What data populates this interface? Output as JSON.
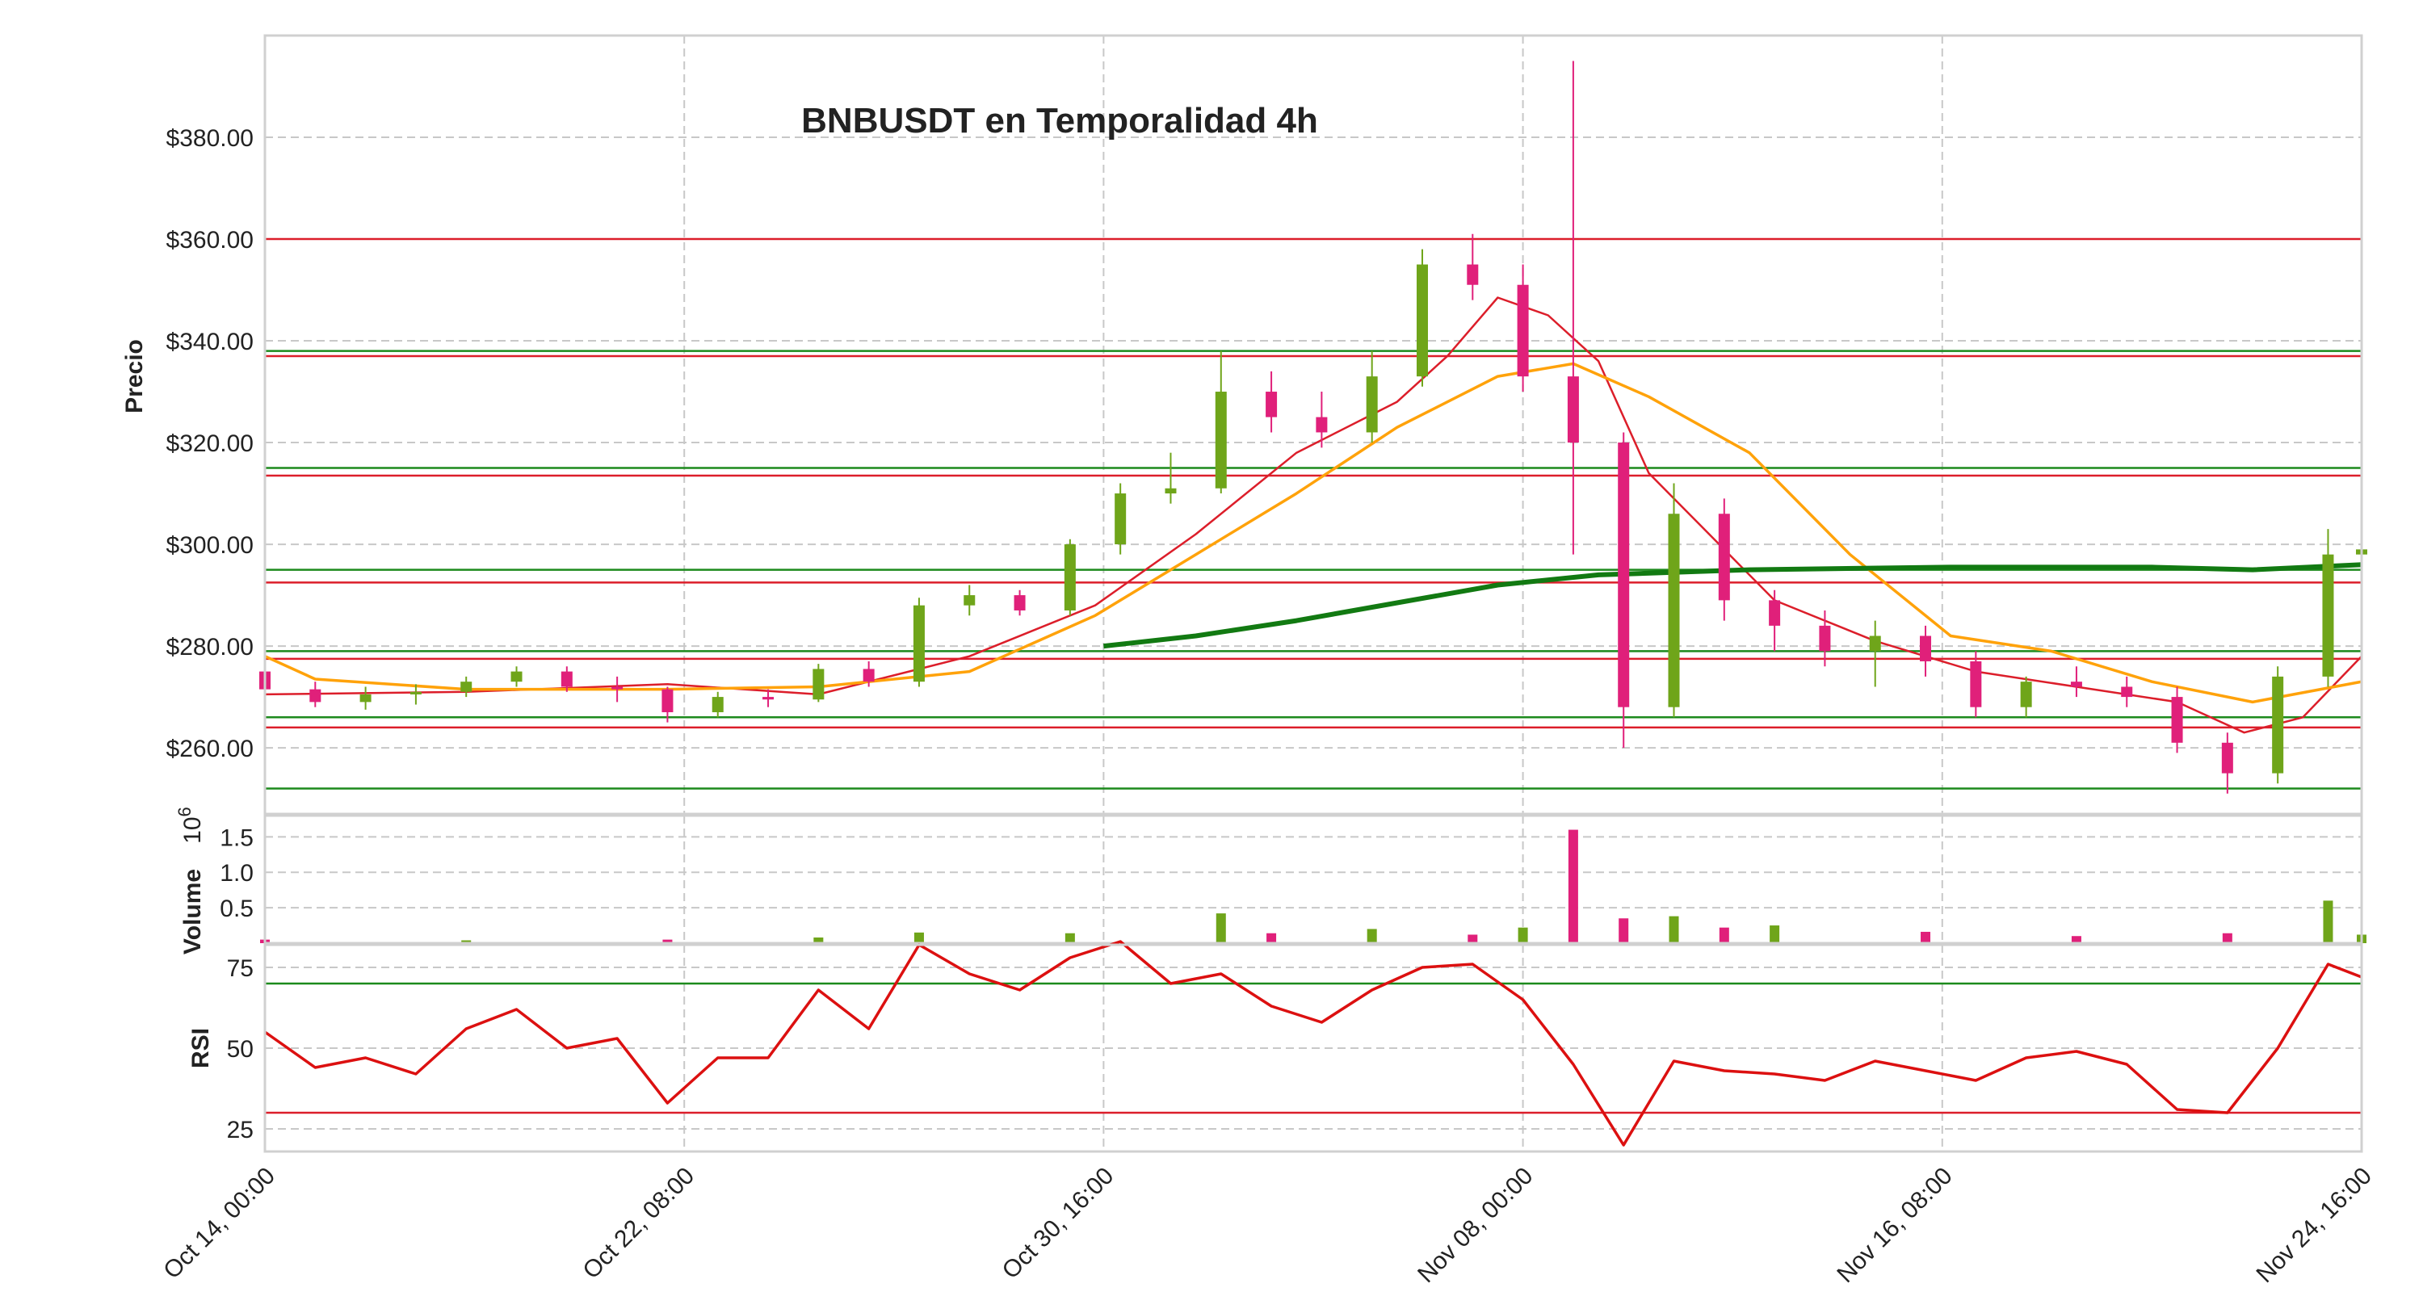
{
  "chart_data": {
    "type": "candlestick",
    "title": "BNBUSDT en Temporalidad 4h",
    "colors": {
      "up": "#6fa51a",
      "down": "#e0207a",
      "sma_short": "#dc1e2a",
      "sma_mid": "#ffa20a",
      "sma_long": "#127a12",
      "resistance": "#dc1e2a",
      "support": "#1c8a1c",
      "rsi": "#dc1010"
    },
    "x_axis": {
      "tick_labels": [
        "Oct 14, 00:00",
        "Oct 22, 08:00",
        "Oct 30, 16:00",
        "Nov 08, 00:00",
        "Nov 16, 08:00",
        "Nov 24, 16:00"
      ],
      "start": "2023-10-14T00:00",
      "end": "2023-11-24T16:00",
      "interval": "4h"
    },
    "price_panel": {
      "ylabel": "Precio",
      "ylim": [
        247,
        400
      ],
      "yticks": [
        260,
        280,
        300,
        320,
        340,
        360,
        380
      ],
      "ytick_labels": [
        "$260.00",
        "$280.00",
        "$300.00",
        "$320.00",
        "$340.00",
        "$360.00",
        "$380.00"
      ],
      "resistance_lines": [
        360,
        337,
        313.5,
        292.5,
        277.5,
        264
      ],
      "support_lines": [
        338,
        315,
        295,
        279,
        266,
        252
      ],
      "candles_key": [
        "datetime",
        "open",
        "high",
        "low",
        "close"
      ],
      "candles": [
        [
          "2023-10-14T00:00",
          275.0,
          276.0,
          270.0,
          271.5
        ],
        [
          "2023-10-15T00:00",
          271.5,
          273.0,
          268.0,
          269.0
        ],
        [
          "2023-10-16T00:00",
          269.0,
          272.0,
          267.5,
          270.5
        ],
        [
          "2023-10-17T00:00",
          270.5,
          272.5,
          268.5,
          271.0
        ],
        [
          "2023-10-18T00:00",
          271.0,
          274.0,
          270.0,
          273.0
        ],
        [
          "2023-10-19T00:00",
          273.0,
          276.0,
          272.0,
          275.0
        ],
        [
          "2023-10-20T00:00",
          275.0,
          276.0,
          271.0,
          272.0
        ],
        [
          "2023-10-21T00:00",
          272.0,
          274.0,
          269.0,
          271.5
        ],
        [
          "2023-10-22T00:00",
          271.5,
          272.0,
          265.0,
          267.0
        ],
        [
          "2023-10-23T00:00",
          267.0,
          271.0,
          266.0,
          270.0
        ],
        [
          "2023-10-24T00:00",
          270.0,
          271.5,
          268.0,
          269.5
        ],
        [
          "2023-10-25T00:00",
          269.5,
          276.5,
          269.0,
          275.5
        ],
        [
          "2023-10-26T00:00",
          275.5,
          277.0,
          272.0,
          273.0
        ],
        [
          "2023-10-27T00:00",
          273.0,
          289.5,
          272.0,
          288.0
        ],
        [
          "2023-10-28T00:00",
          288.0,
          292.0,
          286.0,
          290.0
        ],
        [
          "2023-10-29T00:00",
          290.0,
          291.0,
          286.0,
          287.0
        ],
        [
          "2023-10-30T00:00",
          287.0,
          301.0,
          286.0,
          300.0
        ],
        [
          "2023-10-31T00:00",
          300.0,
          312.0,
          298.0,
          310.0
        ],
        [
          "2023-11-01T00:00",
          310.0,
          318.0,
          308.0,
          311.0
        ],
        [
          "2023-11-02T00:00",
          311.0,
          338.0,
          310.0,
          330.0
        ],
        [
          "2023-11-03T00:00",
          330.0,
          334.0,
          322.0,
          325.0
        ],
        [
          "2023-11-04T00:00",
          325.0,
          330.0,
          319.0,
          322.0
        ],
        [
          "2023-11-05T00:00",
          322.0,
          338.0,
          320.0,
          333.0
        ],
        [
          "2023-11-06T00:00",
          333.0,
          358.0,
          331.0,
          355.0
        ],
        [
          "2023-11-07T00:00",
          355.0,
          361.0,
          348.0,
          351.0
        ],
        [
          "2023-11-08T00:00",
          351.0,
          355.0,
          330.0,
          333.0
        ],
        [
          "2023-11-09T00:00",
          333.0,
          395.0,
          298.0,
          320.0
        ],
        [
          "2023-11-10T00:00",
          320.0,
          322.0,
          260.0,
          268.0
        ],
        [
          "2023-11-11T00:00",
          268.0,
          312.0,
          266.0,
          306.0
        ],
        [
          "2023-11-12T00:00",
          306.0,
          309.0,
          285.0,
          289.0
        ],
        [
          "2023-11-13T00:00",
          289.0,
          291.0,
          279.0,
          284.0
        ],
        [
          "2023-11-14T00:00",
          284.0,
          287.0,
          276.0,
          279.0
        ],
        [
          "2023-11-15T00:00",
          279.0,
          285.0,
          272.0,
          282.0
        ],
        [
          "2023-11-16T00:00",
          282.0,
          284.0,
          274.0,
          277.0
        ],
        [
          "2023-11-17T00:00",
          277.0,
          279.0,
          266.0,
          268.0
        ],
        [
          "2023-11-18T00:00",
          268.0,
          274.0,
          266.0,
          273.0
        ],
        [
          "2023-11-19T00:00",
          273.0,
          276.0,
          270.0,
          272.0
        ],
        [
          "2023-11-20T00:00",
          272.0,
          274.0,
          268.0,
          270.0
        ],
        [
          "2023-11-21T00:00",
          270.0,
          272.0,
          259.0,
          261.0
        ],
        [
          "2023-11-22T00:00",
          261.0,
          263.0,
          251.0,
          255.0
        ],
        [
          "2023-11-23T00:00",
          255.0,
          276.0,
          253.0,
          274.0
        ],
        [
          "2023-11-24T00:00",
          274.0,
          303.0,
          272.0,
          298.0
        ],
        [
          "2023-11-24T16:00",
          298.0,
          301.0,
          295.0,
          299.0
        ]
      ],
      "moving_averages": [
        {
          "color": "#dc1e2a",
          "width": "thin",
          "points": [
            [
              "2023-10-14T00:00",
              270.5
            ],
            [
              "2023-10-18T00:00",
              271.0
            ],
            [
              "2023-10-22T00:00",
              272.5
            ],
            [
              "2023-10-25T00:00",
              270.5
            ],
            [
              "2023-10-28T00:00",
              278.0
            ],
            [
              "2023-10-30T12:00",
              288.0
            ],
            [
              "2023-11-01T12:00",
              302.0
            ],
            [
              "2023-11-03T12:00",
              318.0
            ],
            [
              "2023-11-05T12:00",
              328.0
            ],
            [
              "2023-11-06T12:00",
              337.0
            ],
            [
              "2023-11-07T12:00",
              348.5
            ],
            [
              "2023-11-08T12:00",
              345.0
            ],
            [
              "2023-11-09T12:00",
              336.0
            ],
            [
              "2023-11-10T12:00",
              314.0
            ],
            [
              "2023-11-11T12:00",
              304.0
            ],
            [
              "2023-11-13T00:00",
              289.0
            ],
            [
              "2023-11-15T00:00",
              281.0
            ],
            [
              "2023-11-17T00:00",
              275.0
            ],
            [
              "2023-11-19T00:00",
              272.0
            ],
            [
              "2023-11-21T00:00",
              269.0
            ],
            [
              "2023-11-22T08:00",
              263.0
            ],
            [
              "2023-11-23T12:00",
              266.0
            ],
            [
              "2023-11-24T16:00",
              278.0
            ]
          ]
        },
        {
          "color": "#ffa20a",
          "width": "medium",
          "points": [
            [
              "2023-10-14T00:00",
              278.0
            ],
            [
              "2023-10-15T00:00",
              273.5
            ],
            [
              "2023-10-18T00:00",
              271.5
            ],
            [
              "2023-10-22T00:00",
              271.5
            ],
            [
              "2023-10-25T00:00",
              272.0
            ],
            [
              "2023-10-28T00:00",
              275.0
            ],
            [
              "2023-10-30T12:00",
              286.0
            ],
            [
              "2023-11-01T12:00",
              298.0
            ],
            [
              "2023-11-03T12:00",
              310.0
            ],
            [
              "2023-11-05T12:00",
              323.0
            ],
            [
              "2023-11-07T12:00",
              333.0
            ],
            [
              "2023-11-09T00:00",
              335.5
            ],
            [
              "2023-11-10T12:00",
              329.0
            ],
            [
              "2023-11-12T12:00",
              318.0
            ],
            [
              "2023-11-14T12:00",
              298.0
            ],
            [
              "2023-11-16T12:00",
              282.0
            ],
            [
              "2023-11-18T12:00",
              279.0
            ],
            [
              "2023-11-20T12:00",
              273.0
            ],
            [
              "2023-11-22T12:00",
              269.0
            ],
            [
              "2023-11-24T16:00",
              273.0
            ]
          ]
        },
        {
          "color": "#127a12",
          "width": "thick",
          "points": [
            [
              "2023-10-30T16:00",
              280.0
            ],
            [
              "2023-11-01T12:00",
              282.0
            ],
            [
              "2023-11-03T12:00",
              285.0
            ],
            [
              "2023-11-05T12:00",
              288.5
            ],
            [
              "2023-11-07T12:00",
              292.0
            ],
            [
              "2023-11-09T12:00",
              294.0
            ],
            [
              "2023-11-12T12:00",
              295.0
            ],
            [
              "2023-11-16T12:00",
              295.5
            ],
            [
              "2023-11-20T12:00",
              295.5
            ],
            [
              "2023-11-22T12:00",
              295.0
            ],
            [
              "2023-11-24T16:00",
              296.0
            ]
          ]
        }
      ]
    },
    "volume_panel": {
      "ylabel": "Volume",
      "multiplier_label": "10",
      "multiplier_exp": "6",
      "ylim": [
        0,
        1.8
      ],
      "yticks": [
        0.5,
        1.0,
        1.5
      ],
      "ytick_labels": [
        "0.5",
        "1.0",
        "1.5"
      ],
      "bars": [
        [
          "2023-10-14T00:00",
          0.05,
          "down"
        ],
        [
          "2023-10-18T00:00",
          0.04,
          "up"
        ],
        [
          "2023-10-22T00:00",
          0.05,
          "down"
        ],
        [
          "2023-10-25T00:00",
          0.08,
          "up"
        ],
        [
          "2023-10-27T00:00",
          0.15,
          "up"
        ],
        [
          "2023-10-30T00:00",
          0.14,
          "up"
        ],
        [
          "2023-11-02T00:00",
          0.42,
          "up"
        ],
        [
          "2023-11-03T00:00",
          0.14,
          "down"
        ],
        [
          "2023-11-05T00:00",
          0.2,
          "up"
        ],
        [
          "2023-11-07T00:00",
          0.12,
          "down"
        ],
        [
          "2023-11-08T00:00",
          0.22,
          "up"
        ],
        [
          "2023-11-09T00:00",
          1.6,
          "down"
        ],
        [
          "2023-11-10T00:00",
          0.35,
          "down"
        ],
        [
          "2023-11-11T00:00",
          0.38,
          "up"
        ],
        [
          "2023-11-12T00:00",
          0.22,
          "down"
        ],
        [
          "2023-11-13T00:00",
          0.25,
          "up"
        ],
        [
          "2023-11-16T00:00",
          0.16,
          "down"
        ],
        [
          "2023-11-19T00:00",
          0.1,
          "down"
        ],
        [
          "2023-11-22T00:00",
          0.14,
          "down"
        ],
        [
          "2023-11-24T00:00",
          0.6,
          "up"
        ],
        [
          "2023-11-24T16:00",
          0.12,
          "up"
        ]
      ]
    },
    "rsi_panel": {
      "ylabel": "RSI",
      "ylim": [
        18,
        82
      ],
      "yticks": [
        25,
        50,
        75
      ],
      "ytick_labels": [
        "25",
        "50",
        "75"
      ],
      "overbought": 70,
      "oversold": 30,
      "points": [
        [
          "2023-10-14T00:00",
          55
        ],
        [
          "2023-10-15T00:00",
          44
        ],
        [
          "2023-10-16T00:00",
          47
        ],
        [
          "2023-10-17T00:00",
          42
        ],
        [
          "2023-10-18T00:00",
          56
        ],
        [
          "2023-10-19T00:00",
          62
        ],
        [
          "2023-10-20T00:00",
          50
        ],
        [
          "2023-10-21T00:00",
          53
        ],
        [
          "2023-10-22T00:00",
          33
        ],
        [
          "2023-10-23T00:00",
          47
        ],
        [
          "2023-10-24T00:00",
          47
        ],
        [
          "2023-10-25T00:00",
          68
        ],
        [
          "2023-10-26T00:00",
          56
        ],
        [
          "2023-10-27T00:00",
          82
        ],
        [
          "2023-10-28T00:00",
          73
        ],
        [
          "2023-10-29T00:00",
          68
        ],
        [
          "2023-10-30T00:00",
          78
        ],
        [
          "2023-10-31T00:00",
          83
        ],
        [
          "2023-11-01T00:00",
          70
        ],
        [
          "2023-11-02T00:00",
          73
        ],
        [
          "2023-11-03T00:00",
          63
        ],
        [
          "2023-11-04T00:00",
          58
        ],
        [
          "2023-11-05T00:00",
          68
        ],
        [
          "2023-11-06T00:00",
          75
        ],
        [
          "2023-11-07T00:00",
          76
        ],
        [
          "2023-11-08T00:00",
          65
        ],
        [
          "2023-11-09T00:00",
          45
        ],
        [
          "2023-11-10T00:00",
          20
        ],
        [
          "2023-11-11T00:00",
          46
        ],
        [
          "2023-11-12T00:00",
          43
        ],
        [
          "2023-11-13T00:00",
          42
        ],
        [
          "2023-11-14T00:00",
          40
        ],
        [
          "2023-11-15T00:00",
          46
        ],
        [
          "2023-11-16T00:00",
          43
        ],
        [
          "2023-11-17T00:00",
          40
        ],
        [
          "2023-11-18T00:00",
          47
        ],
        [
          "2023-11-19T00:00",
          49
        ],
        [
          "2023-11-20T00:00",
          45
        ],
        [
          "2023-11-21T00:00",
          31
        ],
        [
          "2023-11-22T00:00",
          30
        ],
        [
          "2023-11-23T00:00",
          50
        ],
        [
          "2023-11-24T00:00",
          76
        ],
        [
          "2023-11-24T16:00",
          72
        ]
      ]
    }
  }
}
